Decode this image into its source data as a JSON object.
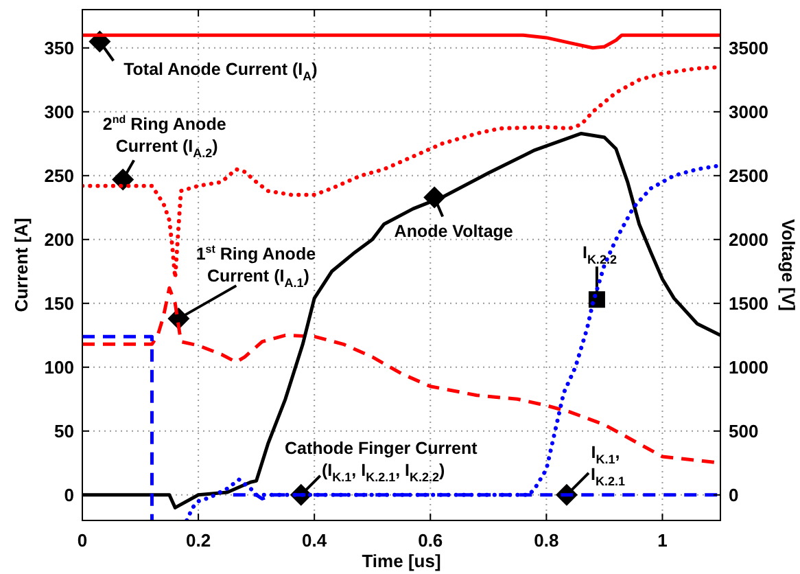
{
  "chart_data": {
    "type": "line",
    "xlabel": "Time [us]",
    "ylabel": "Current [A]",
    "y2label": "Voltage [V]",
    "xlim": [
      0,
      1.1
    ],
    "xticks": [
      0,
      0.2,
      0.4,
      0.6,
      0.8,
      1
    ],
    "ylim": [
      -20,
      380
    ],
    "yticks": [
      0,
      50,
      100,
      150,
      200,
      250,
      300,
      350
    ],
    "y2lim": [
      -200,
      3800
    ],
    "y2ticks": [
      0,
      500,
      1000,
      1500,
      2000,
      2500,
      3000,
      3500
    ],
    "grid": true,
    "legend": false,
    "series": [
      {
        "color": "#ff0000",
        "line_style": "solid",
        "x": [
          0,
          0.76,
          0.8,
          0.84,
          0.88,
          0.9,
          0.92,
          0.93,
          1.1
        ],
        "values": [
          360,
          360,
          358,
          354,
          350,
          351,
          356,
          360,
          360
        ]
      },
      {
        "color": "#ff0000",
        "line_style": "dotted",
        "x": [
          0,
          0.12,
          0.13,
          0.14,
          0.15,
          0.155,
          0.16,
          0.17,
          0.2,
          0.24,
          0.265,
          0.28,
          0.3,
          0.32,
          0.36,
          0.4,
          0.43,
          0.48,
          0.52,
          0.57,
          0.62,
          0.68,
          0.72,
          0.8,
          0.84,
          0.86,
          0.88,
          0.92,
          0.96,
          1.0,
          1.06,
          1.1
        ],
        "values": [
          242,
          242,
          235,
          228,
          215,
          195,
          170,
          238,
          242,
          245,
          255,
          253,
          245,
          238,
          235,
          235,
          240,
          250,
          255,
          265,
          275,
          283,
          287,
          288,
          287,
          290,
          300,
          315,
          325,
          330,
          334,
          335
        ]
      },
      {
        "color": "#ff0000",
        "line_style": "dashed",
        "x": [
          0,
          0.12,
          0.13,
          0.14,
          0.15,
          0.16,
          0.17,
          0.2,
          0.24,
          0.265,
          0.28,
          0.31,
          0.35,
          0.4,
          0.45,
          0.5,
          0.55,
          0.6,
          0.68,
          0.75,
          0.8,
          0.84,
          0.9,
          0.96,
          1.0,
          1.1
        ],
        "values": [
          118,
          118,
          125,
          140,
          162,
          150,
          120,
          117,
          110,
          104,
          108,
          120,
          125,
          124,
          118,
          108,
          95,
          85,
          78,
          75,
          70,
          65,
          55,
          40,
          30,
          25
        ]
      },
      {
        "color": "#000000",
        "line_style": "solid",
        "axis": "y2",
        "x": [
          0,
          0.15,
          0.16,
          0.2,
          0.25,
          0.29,
          0.3,
          0.32,
          0.35,
          0.38,
          0.4,
          0.43,
          0.47,
          0.5,
          0.52,
          0.57,
          0.62,
          0.7,
          0.78,
          0.86,
          0.9,
          0.92,
          0.94,
          0.96,
          0.98,
          1.0,
          1.02,
          1.06,
          1.1
        ],
        "values": [
          0,
          0,
          -100,
          0,
          20,
          100,
          110,
          400,
          750,
          1180,
          1540,
          1750,
          1900,
          2000,
          2120,
          2240,
          2330,
          2520,
          2700,
          2830,
          2800,
          2710,
          2450,
          2120,
          1900,
          1690,
          1540,
          1340,
          1250
        ]
      },
      {
        "color": "#0000ff",
        "line_style": "dashed",
        "x": [
          0,
          0.12,
          0.12
        ],
        "values": [
          124,
          124,
          -20
        ]
      },
      {
        "color": "#0000ff",
        "line_style": "dashed",
        "x": [
          0.26,
          0.3,
          0.31,
          0.33,
          1.1
        ],
        "values": [
          0,
          0,
          -3,
          0,
          0
        ]
      },
      {
        "color": "#0000ff",
        "line_style": "dotted",
        "x": [
          0.18,
          0.19,
          0.2,
          0.22,
          0.25,
          0.27,
          0.29,
          0.3,
          0.77,
          0.78,
          0.8,
          0.81,
          0.82,
          0.83,
          0.85,
          0.87,
          0.88,
          0.9,
          0.92,
          0.95,
          0.98,
          1.02,
          1.06,
          1.1
        ],
        "values": [
          -20,
          -10,
          -5,
          -2,
          5,
          12,
          5,
          0,
          0,
          5,
          20,
          40,
          60,
          80,
          100,
          130,
          150,
          180,
          200,
          225,
          240,
          250,
          255,
          258
        ]
      }
    ],
    "annotations": [
      {
        "text": "Total Anode Current (I$_{A}$)",
        "x": 0.03,
        "y": 355
      },
      {
        "text": "2$^{nd}$ Ring Anode Current (I$_{A.2}$)",
        "x": 0.07,
        "y": 247
      },
      {
        "text": "1$^{st}$ Ring Anode Current (I$_{A.1}$)",
        "x": 0.166,
        "y": 138
      },
      {
        "text": "Anode Voltage",
        "x": 0.607,
        "y": 233
      },
      {
        "text": "I$_{K.2.2}$",
        "x": 0.887,
        "y": 153
      },
      {
        "text": "Cathode Finger Current (I$_{K.1}$, I$_{K.2.1}$, I$_{K.2.2}$)",
        "x": 0.377,
        "y": 0
      },
      {
        "text": "I$_{K.1}$, I$_{K.2.1}$",
        "x": 0.835,
        "y": 0
      }
    ]
  }
}
